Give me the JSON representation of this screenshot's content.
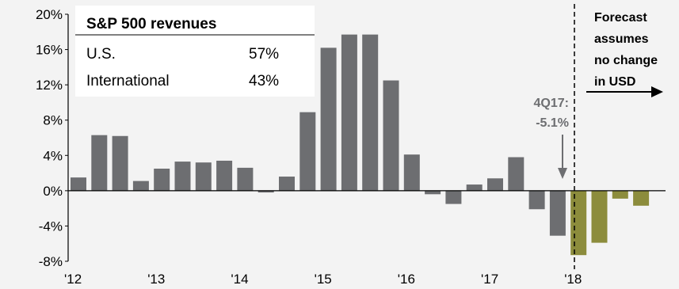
{
  "chart_data": {
    "type": "bar",
    "ylim": [
      -8,
      20
    ],
    "yticks": [
      "20%",
      "16%",
      "12%",
      "8%",
      "4%",
      "0%",
      "-4%",
      "-8%"
    ],
    "ytick_values": [
      20,
      16,
      12,
      8,
      4,
      0,
      -4,
      -8
    ],
    "xtick_labels": [
      "'12",
      "'13",
      "'14",
      "'15",
      "'16",
      "'17",
      "'18"
    ],
    "series": [
      {
        "kind": "actual",
        "color": "#6d6e71",
        "values": [
          1.5,
          6.3,
          6.2,
          1.1,
          2.5,
          3.3,
          3.2,
          3.4,
          2.6,
          -0.2,
          1.6,
          8.9,
          16.2,
          17.7,
          17.7,
          12.5,
          4.1,
          -0.4,
          -1.5,
          0.7,
          1.4,
          3.8,
          -2.1,
          -5.1
        ]
      },
      {
        "kind": "forecast",
        "color": "#8c8c3c",
        "values": [
          -7.3,
          -5.9,
          -0.9,
          -1.7
        ]
      }
    ],
    "grid": false
  },
  "table": {
    "title": "S&P 500 revenues",
    "rows": [
      {
        "label": "U.S.",
        "value": "57%"
      },
      {
        "label": "International",
        "value": "43%"
      }
    ]
  },
  "annotation_4q17": {
    "line1": "4Q17:",
    "line2": "-5.1%"
  },
  "forecast_note": {
    "lines": [
      "Forecast",
      "assumes",
      "no change",
      "in USD"
    ]
  },
  "colors": {
    "actual_bar": "#6d6e71",
    "forecast_bar": "#8c8c3c",
    "annotation_text": "#6d6e71",
    "background": "#f3f3f3"
  }
}
